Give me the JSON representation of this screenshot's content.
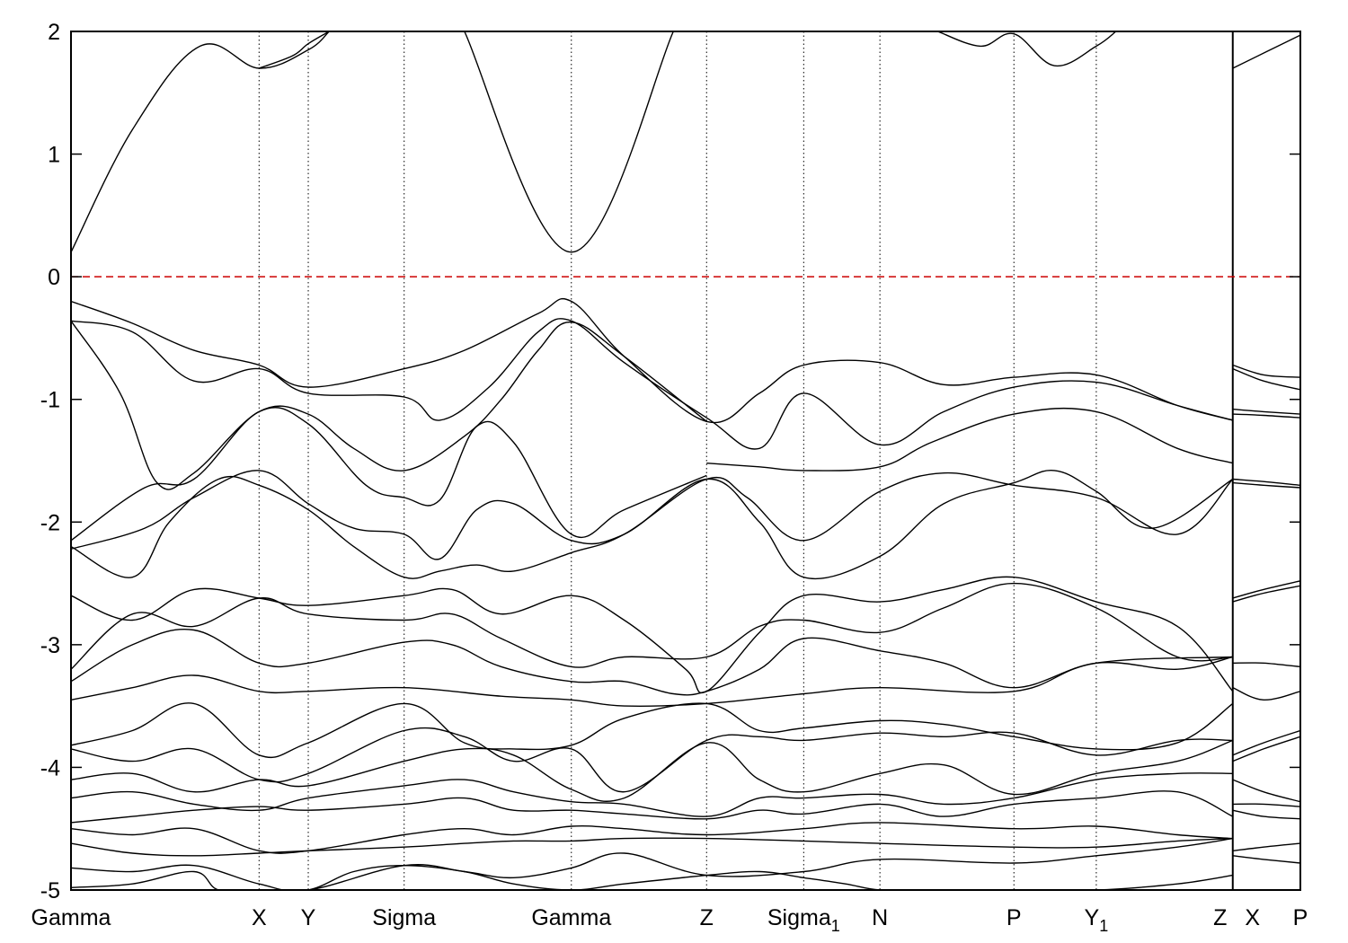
{
  "chart_data": {
    "type": "line",
    "title": "",
    "xlabel": "",
    "ylabel": "",
    "ylim": [
      -5,
      2
    ],
    "yticks": [
      -5,
      -4,
      -3,
      -2,
      -1,
      0,
      1,
      2
    ],
    "grid": "vertical dotted lines at high-symmetry points",
    "legend": "none",
    "fermi_level": {
      "y": 0,
      "color": "#cc0000",
      "style": "dashed"
    },
    "kpoints": [
      {
        "label": "Gamma",
        "sub": "",
        "x": 0.0
      },
      {
        "label": "X",
        "sub": "",
        "x": 0.153
      },
      {
        "label": "Y",
        "sub": "",
        "x": 0.193
      },
      {
        "label": "Sigma",
        "sub": "",
        "x": 0.271
      },
      {
        "label": "Gamma",
        "sub": "",
        "x": 0.407
      },
      {
        "label": "Z",
        "sub": "",
        "x": 0.517
      },
      {
        "label": "Sigma",
        "sub": "1",
        "x": 0.596
      },
      {
        "label": "N",
        "sub": "",
        "x": 0.658
      },
      {
        "label": "P",
        "sub": "",
        "x": 0.767
      },
      {
        "label": "Y",
        "sub": "1",
        "x": 0.834
      },
      {
        "label": "Z",
        "sub": "",
        "x": 0.945
      },
      {
        "label": "X",
        "sub": "",
        "x": 0.945
      },
      {
        "label": "P",
        "sub": "",
        "x": 1.0
      }
    ],
    "segment_break_x": 0.945,
    "bands": [
      {
        "x": [
          0.0,
          0.05,
          0.105,
          0.153,
          0.193,
          0.21
        ],
        "y": [
          0.2,
          1.2,
          1.88,
          1.7,
          1.85,
          2.0
        ]
      },
      {
        "x": [
          0.153,
          0.18,
          0.193,
          0.21
        ],
        "y": [
          1.7,
          1.8,
          1.9,
          2.0
        ]
      },
      {
        "x": [
          0.32,
          0.407,
          0.49
        ],
        "y": [
          2.0,
          0.2,
          2.0
        ]
      },
      {
        "x": [
          0.705,
          0.74,
          0.767,
          0.8,
          0.834,
          0.85
        ],
        "y": [
          2.0,
          1.88,
          1.98,
          1.72,
          1.88,
          2.0
        ]
      },
      {
        "x": [
          0.945,
          1.0
        ],
        "y": [
          1.7,
          1.97
        ]
      },
      {
        "x": [
          0.0,
          0.05,
          0.1,
          0.153,
          0.193,
          0.271,
          0.32,
          0.38,
          0.407,
          0.45,
          0.517,
          0.56,
          0.596,
          0.658,
          0.71,
          0.767,
          0.834,
          0.9,
          0.945
        ],
        "y": [
          -0.2,
          -0.38,
          -0.6,
          -0.72,
          -0.9,
          -0.75,
          -0.6,
          -0.3,
          -0.2,
          -0.65,
          -1.18,
          -0.95,
          -0.72,
          -0.7,
          -0.88,
          -0.82,
          -0.8,
          -1.05,
          -1.17
        ]
      },
      {
        "x": [
          0.0,
          0.05,
          0.1,
          0.153,
          0.193,
          0.271,
          0.3,
          0.34,
          0.38,
          0.407,
          0.45,
          0.517,
          0.56,
          0.596,
          0.658,
          0.71,
          0.767,
          0.834,
          0.9,
          0.945
        ],
        "y": [
          -0.36,
          -0.45,
          -0.85,
          -0.75,
          -0.95,
          -0.98,
          -1.17,
          -0.9,
          -0.45,
          -0.36,
          -0.7,
          -1.15,
          -1.4,
          -0.95,
          -1.37,
          -1.1,
          -0.9,
          -0.86,
          -1.05,
          -1.17
        ]
      },
      {
        "x": [
          0.0,
          0.04,
          0.07,
          0.1,
          0.153,
          0.193,
          0.23,
          0.271,
          0.32,
          0.35,
          0.38,
          0.407,
          0.45,
          0.517
        ],
        "y": [
          -0.36,
          -0.95,
          -1.68,
          -1.6,
          -1.1,
          -1.12,
          -1.4,
          -1.58,
          -1.3,
          -1.0,
          -0.6,
          -0.37,
          -0.65,
          -1.18
        ]
      },
      {
        "x": [
          0.517,
          0.56,
          0.596,
          0.658,
          0.7,
          0.767,
          0.834,
          0.9,
          0.945
        ],
        "y": [
          -1.52,
          -1.55,
          -1.58,
          -1.55,
          -1.35,
          -1.12,
          -1.1,
          -1.4,
          -1.52
        ]
      },
      {
        "x": [
          0.0,
          0.06,
          0.1,
          0.153,
          0.193,
          0.24,
          0.271,
          0.3,
          0.33,
          0.36,
          0.407,
          0.45,
          0.517
        ],
        "y": [
          -2.15,
          -1.72,
          -1.65,
          -1.1,
          -1.2,
          -1.7,
          -1.8,
          -1.82,
          -1.22,
          -1.35,
          -2.1,
          -1.9,
          -1.62
        ]
      },
      {
        "x": [
          0.0,
          0.05,
          0.08,
          0.12,
          0.153,
          0.193,
          0.23,
          0.271,
          0.3,
          0.33,
          0.36,
          0.407,
          0.45,
          0.517,
          0.55,
          0.596,
          0.658,
          0.71,
          0.767,
          0.834,
          0.9,
          0.945
        ],
        "y": [
          -2.2,
          -2.45,
          -2.0,
          -1.65,
          -1.7,
          -1.9,
          -2.2,
          -2.45,
          -2.4,
          -2.35,
          -2.4,
          -2.25,
          -2.1,
          -1.65,
          -1.8,
          -2.15,
          -1.75,
          -1.6,
          -1.7,
          -1.8,
          -2.1,
          -1.65
        ]
      },
      {
        "x": [
          0.0,
          0.06,
          0.1,
          0.153,
          0.193,
          0.23,
          0.271,
          0.3,
          0.33,
          0.36,
          0.407,
          0.45,
          0.517,
          0.56,
          0.596,
          0.658,
          0.71,
          0.767,
          0.8,
          0.834,
          0.88,
          0.945
        ],
        "y": [
          -2.22,
          -2.05,
          -1.8,
          -1.58,
          -1.85,
          -2.05,
          -2.1,
          -2.3,
          -1.9,
          -1.85,
          -2.15,
          -2.1,
          -1.65,
          -2.0,
          -2.45,
          -2.28,
          -1.85,
          -1.68,
          -1.58,
          -1.75,
          -2.05,
          -1.65
        ]
      },
      {
        "x": [
          0.0,
          0.05,
          0.1,
          0.153,
          0.193,
          0.271,
          0.31,
          0.35,
          0.407,
          0.45,
          0.5,
          0.517,
          0.56,
          0.596,
          0.658,
          0.71,
          0.767,
          0.834,
          0.9,
          0.945
        ],
        "y": [
          -2.6,
          -2.8,
          -2.55,
          -2.62,
          -2.68,
          -2.6,
          -2.55,
          -2.75,
          -2.6,
          -2.8,
          -3.2,
          -3.38,
          -2.9,
          -2.6,
          -2.65,
          -2.55,
          -2.45,
          -2.65,
          -2.85,
          -3.38
        ]
      },
      {
        "x": [
          0.0,
          0.05,
          0.1,
          0.153,
          0.193,
          0.271,
          0.31,
          0.35,
          0.407,
          0.45,
          0.517,
          0.56,
          0.596,
          0.658,
          0.71,
          0.767,
          0.834,
          0.9,
          0.945
        ],
        "y": [
          -3.2,
          -2.75,
          -2.85,
          -2.62,
          -2.75,
          -2.8,
          -2.75,
          -2.95,
          -3.18,
          -3.1,
          -3.1,
          -2.85,
          -2.8,
          -2.9,
          -2.7,
          -2.5,
          -2.7,
          -3.1,
          -3.1
        ]
      },
      {
        "x": [
          0.0,
          0.05,
          0.1,
          0.153,
          0.193,
          0.271,
          0.31,
          0.35,
          0.407,
          0.45,
          0.49,
          0.517,
          0.56,
          0.596,
          0.658,
          0.71,
          0.767,
          0.834,
          0.9,
          0.945
        ],
        "y": [
          -3.3,
          -3.0,
          -2.88,
          -3.15,
          -3.15,
          -2.98,
          -3.0,
          -3.18,
          -3.3,
          -3.3,
          -3.4,
          -3.38,
          -3.2,
          -2.95,
          -3.05,
          -3.15,
          -3.35,
          -3.15,
          -3.2,
          -3.1
        ]
      },
      {
        "x": [
          0.0,
          0.05,
          0.1,
          0.153,
          0.193,
          0.271,
          0.35,
          0.407,
          0.45,
          0.517,
          0.596,
          0.658,
          0.767,
          0.834,
          0.945
        ],
        "y": [
          -3.45,
          -3.35,
          -3.25,
          -3.38,
          -3.38,
          -3.35,
          -3.42,
          -3.45,
          -3.5,
          -3.48,
          -3.4,
          -3.35,
          -3.38,
          -3.15,
          -3.1
        ]
      },
      {
        "x": [
          0.0,
          0.05,
          0.1,
          0.153,
          0.193,
          0.271,
          0.32,
          0.36,
          0.407,
          0.45,
          0.517,
          0.56,
          0.596,
          0.658,
          0.71,
          0.767,
          0.834,
          0.9,
          0.945
        ],
        "y": [
          -3.82,
          -3.7,
          -3.48,
          -3.9,
          -3.8,
          -3.48,
          -3.8,
          -3.85,
          -3.82,
          -3.6,
          -3.48,
          -3.7,
          -3.68,
          -3.62,
          -3.65,
          -3.75,
          -3.85,
          -3.8,
          -3.48
        ]
      },
      {
        "x": [
          0.0,
          0.05,
          0.1,
          0.153,
          0.193,
          0.271,
          0.32,
          0.36,
          0.407,
          0.45,
          0.517,
          0.56,
          0.596,
          0.658,
          0.71,
          0.767,
          0.834,
          0.9,
          0.945
        ],
        "y": [
          -3.85,
          -3.95,
          -3.85,
          -4.1,
          -4.05,
          -3.7,
          -3.75,
          -3.95,
          -3.85,
          -4.2,
          -3.78,
          -3.75,
          -3.78,
          -3.72,
          -3.75,
          -3.72,
          -3.9,
          -3.78,
          -3.78
        ]
      },
      {
        "x": [
          0.0,
          0.05,
          0.1,
          0.153,
          0.193,
          0.271,
          0.32,
          0.36,
          0.407,
          0.45,
          0.517,
          0.56,
          0.596,
          0.658,
          0.71,
          0.767,
          0.834,
          0.9,
          0.945
        ],
        "y": [
          -4.1,
          -4.05,
          -4.2,
          -4.1,
          -4.15,
          -3.95,
          -3.85,
          -3.9,
          -4.18,
          -4.25,
          -3.8,
          -4.1,
          -4.2,
          -4.05,
          -3.98,
          -4.22,
          -4.05,
          -3.95,
          -3.78
        ]
      },
      {
        "x": [
          0.0,
          0.05,
          0.1,
          0.153,
          0.193,
          0.271,
          0.32,
          0.36,
          0.407,
          0.45,
          0.517,
          0.56,
          0.596,
          0.658,
          0.71,
          0.767,
          0.834,
          0.9,
          0.945
        ],
        "y": [
          -4.25,
          -4.2,
          -4.3,
          -4.35,
          -4.25,
          -4.15,
          -4.1,
          -4.2,
          -4.28,
          -4.3,
          -4.4,
          -4.25,
          -4.25,
          -4.22,
          -4.3,
          -4.25,
          -4.1,
          -4.05,
          -4.05
        ]
      },
      {
        "x": [
          0.0,
          0.05,
          0.1,
          0.153,
          0.193,
          0.271,
          0.32,
          0.36,
          0.407,
          0.45,
          0.517,
          0.56,
          0.596,
          0.658,
          0.71,
          0.767,
          0.834,
          0.9,
          0.945
        ],
        "y": [
          -4.45,
          -4.4,
          -4.35,
          -4.32,
          -4.35,
          -4.3,
          -4.25,
          -4.35,
          -4.35,
          -4.38,
          -4.42,
          -4.35,
          -4.38,
          -4.3,
          -4.4,
          -4.3,
          -4.25,
          -4.2,
          -4.4
        ]
      },
      {
        "x": [
          0.0,
          0.05,
          0.1,
          0.153,
          0.193,
          0.271,
          0.32,
          0.36,
          0.407,
          0.45,
          0.517,
          0.596,
          0.658,
          0.767,
          0.834,
          0.9,
          0.945
        ],
        "y": [
          -4.5,
          -4.55,
          -4.5,
          -4.68,
          -4.68,
          -4.55,
          -4.5,
          -4.55,
          -4.48,
          -4.5,
          -4.55,
          -4.5,
          -4.45,
          -4.5,
          -4.48,
          -4.55,
          -4.58
        ]
      },
      {
        "x": [
          0.0,
          0.05,
          0.1,
          0.153,
          0.193,
          0.271,
          0.32,
          0.36,
          0.407,
          0.45,
          0.517,
          0.596,
          0.658,
          0.767,
          0.834,
          0.9,
          0.945
        ],
        "y": [
          -4.62,
          -4.7,
          -4.72,
          -4.7,
          -4.68,
          -4.65,
          -4.62,
          -4.6,
          -4.6,
          -4.58,
          -4.58,
          -4.6,
          -4.62,
          -4.65,
          -4.65,
          -4.6,
          -4.58
        ]
      },
      {
        "x": [
          0.0,
          0.05,
          0.1,
          0.153,
          0.193,
          0.271,
          0.32,
          0.36,
          0.407,
          0.45,
          0.517,
          0.596,
          0.658,
          0.767,
          0.834,
          0.9,
          0.945
        ],
        "y": [
          -4.82,
          -4.85,
          -4.8,
          -4.95,
          -5.0,
          -4.8,
          -4.85,
          -4.9,
          -4.82,
          -4.7,
          -4.88,
          -4.85,
          -4.75,
          -4.78,
          -4.72,
          -4.65,
          -4.58
        ]
      },
      {
        "x": [
          0.0,
          0.05,
          0.1,
          0.12,
          0.153,
          0.193,
          0.23,
          0.271,
          0.32,
          0.36,
          0.407,
          0.45,
          0.517,
          0.56,
          0.596,
          0.63,
          0.658,
          0.7,
          0.767,
          0.834,
          0.9,
          0.945
        ],
        "y": [
          -4.98,
          -4.95,
          -4.85,
          -5.0,
          -5.0,
          -5.0,
          -4.85,
          -4.8,
          -4.85,
          -4.95,
          -5.0,
          -4.95,
          -4.88,
          -4.85,
          -4.9,
          -4.95,
          -5.0,
          -5.0,
          -5.0,
          -5.0,
          -4.95,
          -4.88
        ]
      },
      {
        "x": [
          0.945,
          0.97,
          1.0
        ],
        "y": [
          -0.72,
          -0.8,
          -0.82
        ]
      },
      {
        "x": [
          0.945,
          0.97,
          1.0
        ],
        "y": [
          -0.75,
          -0.85,
          -0.92
        ]
      },
      {
        "x": [
          0.945,
          0.97,
          1.0
        ],
        "y": [
          -1.08,
          -1.1,
          -1.12
        ]
      },
      {
        "x": [
          0.945,
          0.97,
          1.0
        ],
        "y": [
          -1.12,
          -1.13,
          -1.15
        ]
      },
      {
        "x": [
          0.945,
          0.97,
          1.0
        ],
        "y": [
          -1.65,
          -1.67,
          -1.7
        ]
      },
      {
        "x": [
          0.945,
          0.97,
          1.0
        ],
        "y": [
          -1.68,
          -1.7,
          -1.72
        ]
      },
      {
        "x": [
          0.945,
          0.97,
          1.0
        ],
        "y": [
          -2.62,
          -2.55,
          -2.48
        ]
      },
      {
        "x": [
          0.945,
          0.97,
          1.0
        ],
        "y": [
          -2.65,
          -2.58,
          -2.52
        ]
      },
      {
        "x": [
          0.945,
          0.97,
          1.0
        ],
        "y": [
          -3.15,
          -3.15,
          -3.18
        ]
      },
      {
        "x": [
          0.945,
          0.97,
          1.0
        ],
        "y": [
          -3.35,
          -3.45,
          -3.38
        ]
      },
      {
        "x": [
          0.945,
          0.97,
          1.0
        ],
        "y": [
          -3.9,
          -3.8,
          -3.7
        ]
      },
      {
        "x": [
          0.945,
          0.97,
          1.0
        ],
        "y": [
          -3.95,
          -3.85,
          -3.75
        ]
      },
      {
        "x": [
          0.945,
          0.97,
          1.0
        ],
        "y": [
          -4.1,
          -4.2,
          -4.28
        ]
      },
      {
        "x": [
          0.945,
          0.97,
          1.0
        ],
        "y": [
          -4.3,
          -4.3,
          -4.32
        ]
      },
      {
        "x": [
          0.945,
          0.97,
          1.0
        ],
        "y": [
          -4.35,
          -4.4,
          -4.42
        ]
      },
      {
        "x": [
          0.945,
          0.97,
          1.0
        ],
        "y": [
          -4.68,
          -4.65,
          -4.62
        ]
      },
      {
        "x": [
          0.945,
          0.97,
          1.0
        ],
        "y": [
          -4.72,
          -4.75,
          -4.78
        ]
      }
    ]
  }
}
